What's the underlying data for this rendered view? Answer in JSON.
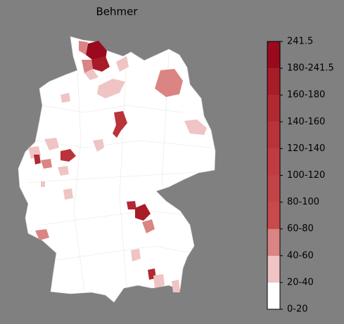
{
  "title": "Behmer",
  "legend": {
    "labels": [
      "0-20",
      "20-40",
      "40-60",
      "60-80",
      "80-100",
      "100-120",
      "120-140",
      "140-160",
      "160-180",
      "180-241.5",
      "241.5"
    ],
    "colors": [
      "#ffffff",
      "#f0c4c4",
      "#da8484",
      "#c84a4a",
      "#c44346",
      "#c03c40",
      "#ba333a",
      "#b22932",
      "#a81c28",
      "#990a1e"
    ]
  }
}
